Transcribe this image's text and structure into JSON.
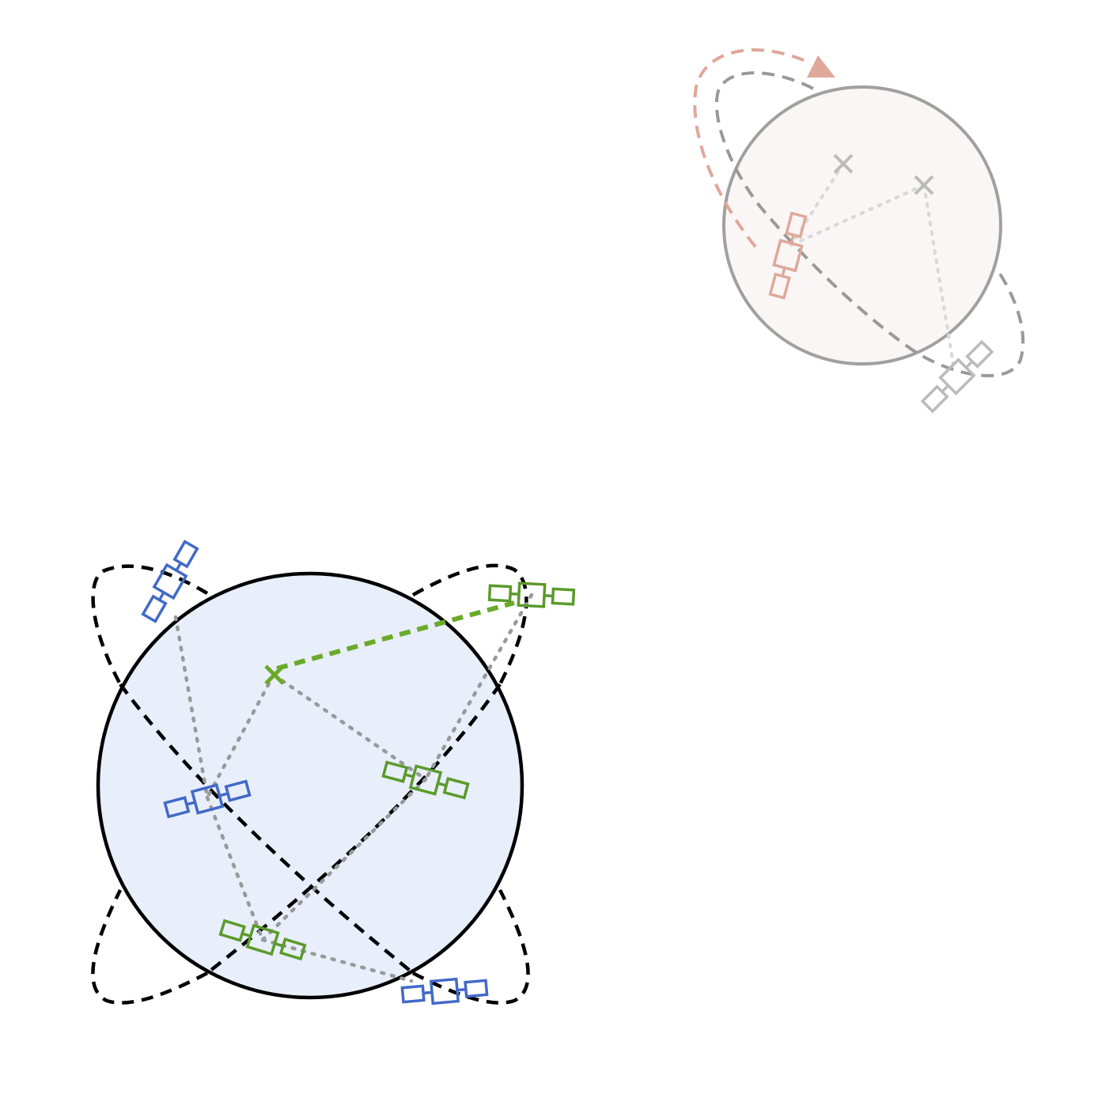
{
  "colors": {
    "background": "#ffffff",
    "main_planet_fill": "#e8eefa",
    "main_planet_stroke": "#000000",
    "orbit_main": "#000000",
    "sat_blue": "#4169c8",
    "sat_green": "#5a9a2a",
    "link_green": "#6aaa2a",
    "sightline": "#999999",
    "small_planet_fill": "#f9f6f5",
    "small_planet_stroke": "#a0a0a0",
    "orbit_small": "#999999",
    "sat_faded": "#bbbbbb",
    "sat_salmon": "#dfa89a",
    "sightline_faded": "#d8d8d8"
  },
  "diagram": {
    "main_system": {
      "planet": "main-planet",
      "orbits": [
        "orbit-tilted-left",
        "orbit-tilted-right"
      ],
      "satellites": [
        {
          "name": "blue-satellite-top",
          "color": "blue"
        },
        {
          "name": "blue-satellite-left",
          "color": "blue"
        },
        {
          "name": "blue-satellite-bottom",
          "color": "blue"
        },
        {
          "name": "green-satellite-right",
          "color": "green"
        },
        {
          "name": "green-satellite-center",
          "color": "green"
        },
        {
          "name": "green-satellite-bottom",
          "color": "green"
        }
      ],
      "ground_targets": [
        {
          "name": "green-ground-target",
          "color": "green"
        }
      ],
      "highlighted_link": "green-dashed-link"
    },
    "secondary_system": {
      "planet": "small-planet",
      "orbits": [
        "small-orbit"
      ],
      "satellites": [
        {
          "name": "salmon-satellite",
          "color": "salmon"
        },
        {
          "name": "faded-satellite",
          "color": "faded"
        }
      ],
      "ground_targets": [
        {
          "name": "faded-ground-target-1",
          "color": "faded"
        },
        {
          "name": "faded-ground-target-2",
          "color": "faded"
        }
      ],
      "motion_arrow": "salmon-orbit-arrow"
    }
  }
}
